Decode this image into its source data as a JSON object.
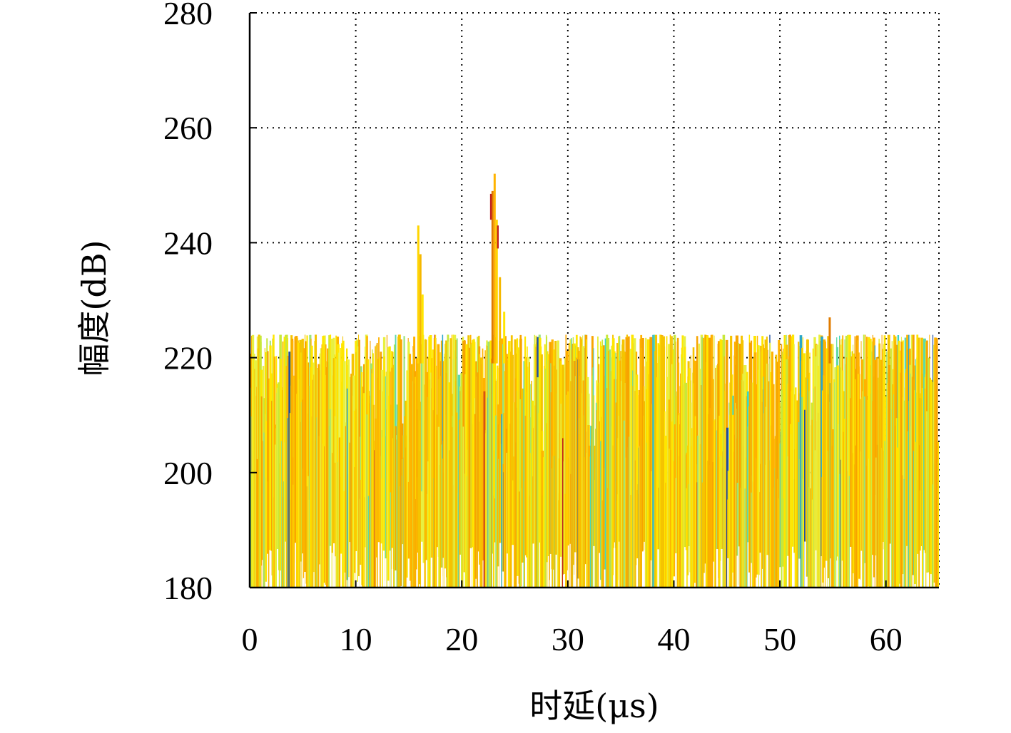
{
  "chart_data": {
    "type": "line",
    "title": "",
    "xlabel": "时延(μs)",
    "ylabel": "幅度(dB)",
    "xlim": [
      0,
      65
    ],
    "ylim": [
      180,
      280
    ],
    "xticks": [
      0,
      10,
      20,
      30,
      40,
      50,
      60
    ],
    "yticks": [
      180,
      200,
      220,
      240,
      260,
      280
    ],
    "grid": true,
    "grid_style": "dotted",
    "noise_floor_db": [
      195,
      224
    ],
    "colors": [
      "#ffe600",
      "#f5c400",
      "#ffb300",
      "#f7a400",
      "#e8f040",
      "#c8e83a",
      "#9be37a",
      "#5fd9a8",
      "#38d6c6",
      "#2aa6c8",
      "#1f4fa0",
      "#c02020"
    ],
    "peaks": [
      {
        "x": 15.9,
        "y": 243
      },
      {
        "x": 16.1,
        "y": 238
      },
      {
        "x": 16.3,
        "y": 231
      },
      {
        "x": 22.9,
        "y": 249
      },
      {
        "x": 23.1,
        "y": 252
      },
      {
        "x": 23.3,
        "y": 244
      },
      {
        "x": 23.6,
        "y": 234
      },
      {
        "x": 24.0,
        "y": 228
      },
      {
        "x": 54.7,
        "y": 227
      }
    ]
  }
}
